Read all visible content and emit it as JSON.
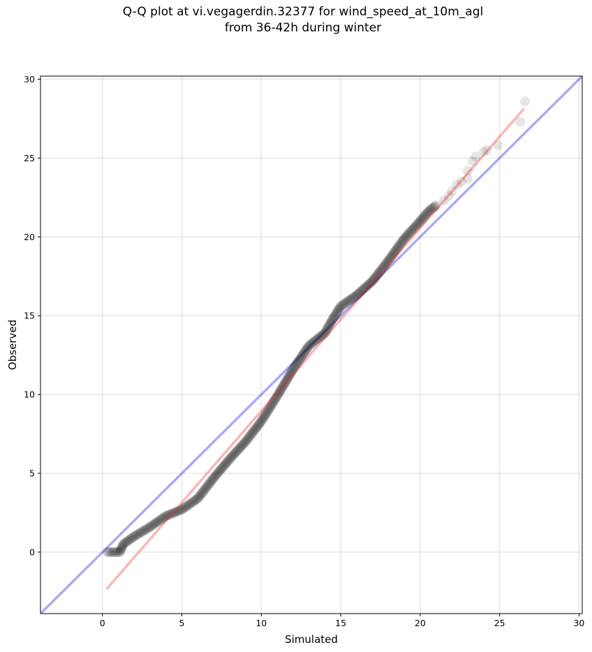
{
  "title_line1": "Q-Q plot at vi.vegagerdin.32377 for wind_speed_at_10m_agl",
  "title_line2": "from 36-42h during winter",
  "chart_data": {
    "type": "scatter",
    "title": "Q-Q plot at vi.vegagerdin.32377 for wind_speed_at_10m_agl from 36-42h during winter",
    "xlabel": "Simulated",
    "ylabel": "Observed",
    "xlim": [
      -3.9,
      30.2
    ],
    "ylim": [
      -3.9,
      30.2
    ],
    "xticks": [
      0,
      5,
      10,
      15,
      20,
      25,
      30
    ],
    "yticks": [
      0,
      5,
      10,
      15,
      20,
      25,
      30
    ],
    "grid": true,
    "colors": {
      "points": "#000000",
      "identity_line": "#0000dd",
      "fit_line": "#ee2222"
    },
    "quantile_curve": [
      [
        0.3,
        0.0
      ],
      [
        0.6,
        0.0
      ],
      [
        0.9,
        0.0
      ],
      [
        1.1,
        0.0
      ],
      [
        1.3,
        0.5
      ],
      [
        2.0,
        1.0
      ],
      [
        3.0,
        1.6
      ],
      [
        4.0,
        2.3
      ],
      [
        5.0,
        2.7
      ],
      [
        6.0,
        3.4
      ],
      [
        7.0,
        4.7
      ],
      [
        8.0,
        5.9
      ],
      [
        9.0,
        7.0
      ],
      [
        10.0,
        8.3
      ],
      [
        11.0,
        9.9
      ],
      [
        12.0,
        11.6
      ],
      [
        13.0,
        13.1
      ],
      [
        14.0,
        13.9
      ],
      [
        14.5,
        14.8
      ],
      [
        15.0,
        15.6
      ],
      [
        16.0,
        16.3
      ],
      [
        17.0,
        17.2
      ],
      [
        18.0,
        18.5
      ],
      [
        19.0,
        19.9
      ],
      [
        20.0,
        21.0
      ],
      [
        20.5,
        21.6
      ],
      [
        21.0,
        22.0
      ]
    ],
    "upper_tail_points": [
      [
        21.5,
        22.3
      ],
      [
        21.8,
        22.6
      ],
      [
        22.0,
        22.9
      ],
      [
        22.3,
        23.3
      ],
      [
        22.6,
        23.5
      ],
      [
        23.0,
        23.7
      ],
      [
        23.0,
        24.2
      ],
      [
        23.3,
        24.8
      ],
      [
        23.5,
        25.1
      ],
      [
        24.0,
        25.4
      ],
      [
        24.2,
        25.5
      ],
      [
        24.9,
        25.8
      ],
      [
        26.3,
        27.3
      ],
      [
        26.6,
        28.6
      ]
    ],
    "identity_line": {
      "x": [
        -3.9,
        30.2
      ],
      "y": [
        -3.9,
        30.2
      ]
    },
    "fit_line": {
      "x": [
        0.3,
        26.5
      ],
      "y": [
        -2.3,
        28.1
      ]
    }
  }
}
